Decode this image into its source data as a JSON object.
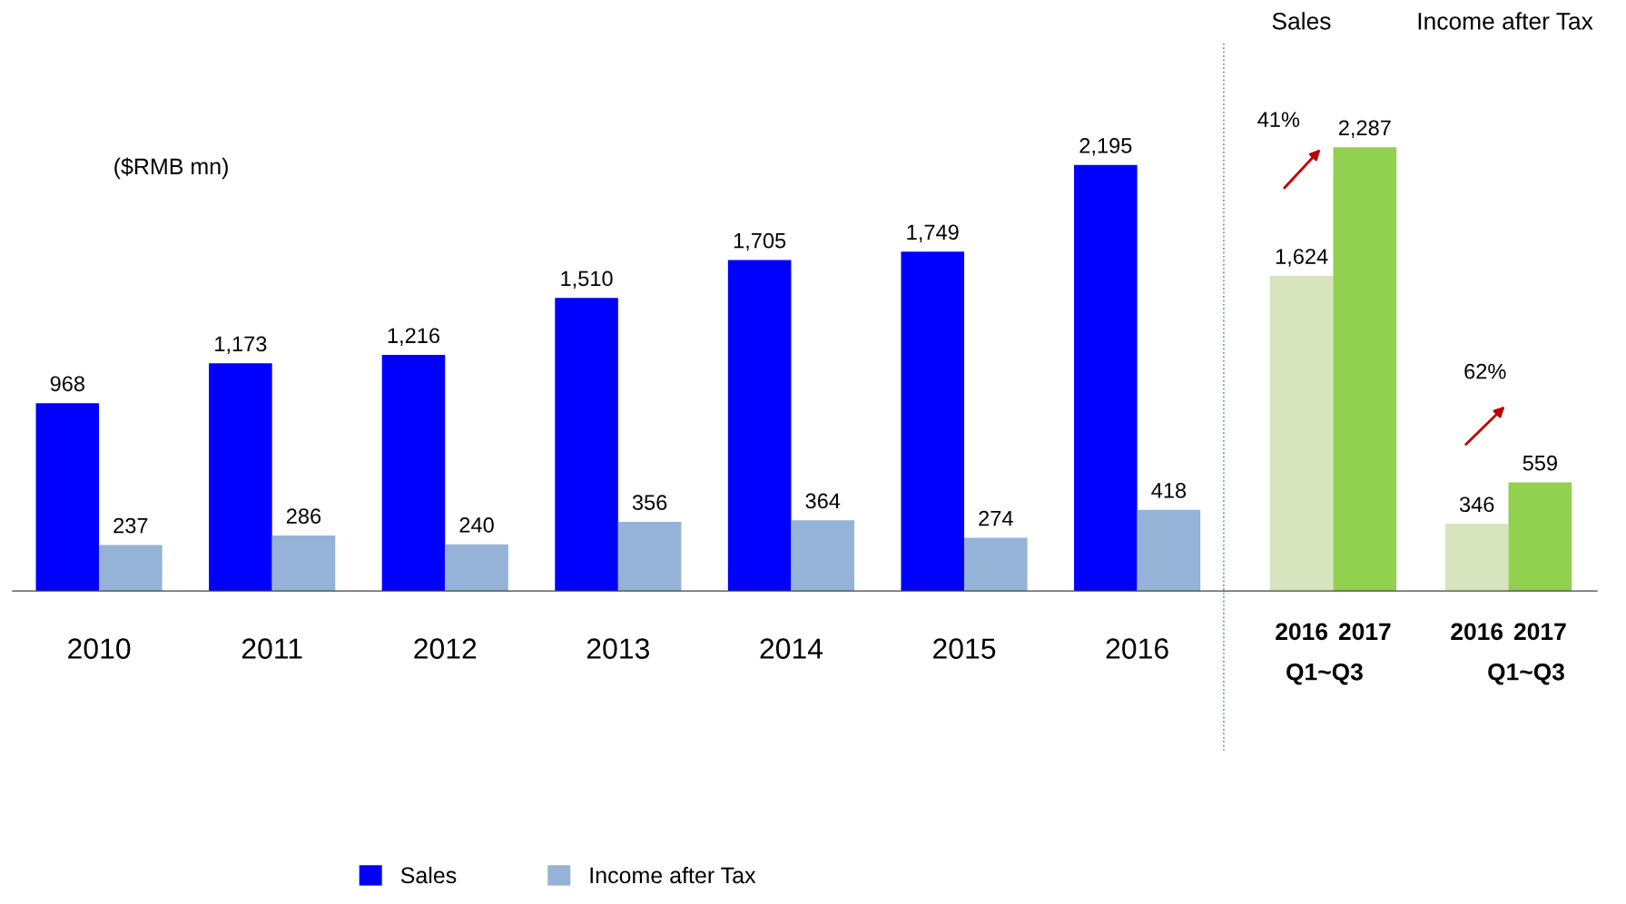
{
  "chart_data": [
    {
      "type": "bar",
      "categories": [
        "2010",
        "2011",
        "2012",
        "2013",
        "2014",
        "2015",
        "2016"
      ],
      "series": [
        {
          "name": "Sales",
          "color": "#0000ff",
          "values": [
            968,
            1173,
            1216,
            1510,
            1705,
            1749,
            2195
          ],
          "value_labels": [
            "968",
            "1,173",
            "1,216",
            "1,510",
            "1,705",
            "1,749",
            "2,195"
          ]
        },
        {
          "name": "Income after Tax",
          "color": "#95b3d7",
          "values": [
            237,
            286,
            240,
            356,
            364,
            274,
            418
          ],
          "value_labels": [
            "237",
            "286",
            "240",
            "356",
            "364",
            "274",
            "418"
          ]
        }
      ],
      "legend": "bottom",
      "annotations": [
        "($RMB mn)"
      ]
    },
    {
      "type": "bar",
      "categories": [
        "2016",
        "2017",
        "2016",
        "2017"
      ],
      "values": [
        1624,
        2287,
        346,
        559
      ],
      "value_labels": [
        "1,624",
        "2,287",
        "346",
        "559"
      ],
      "colors": [
        "#d7e4bd",
        "#92d050",
        "#d7e4bd",
        "#92d050"
      ],
      "annotations": [
        "Sales",
        "Income after Tax",
        "Q1~Q3",
        "Q1~Q3",
        "41%",
        "62%"
      ]
    }
  ]
}
